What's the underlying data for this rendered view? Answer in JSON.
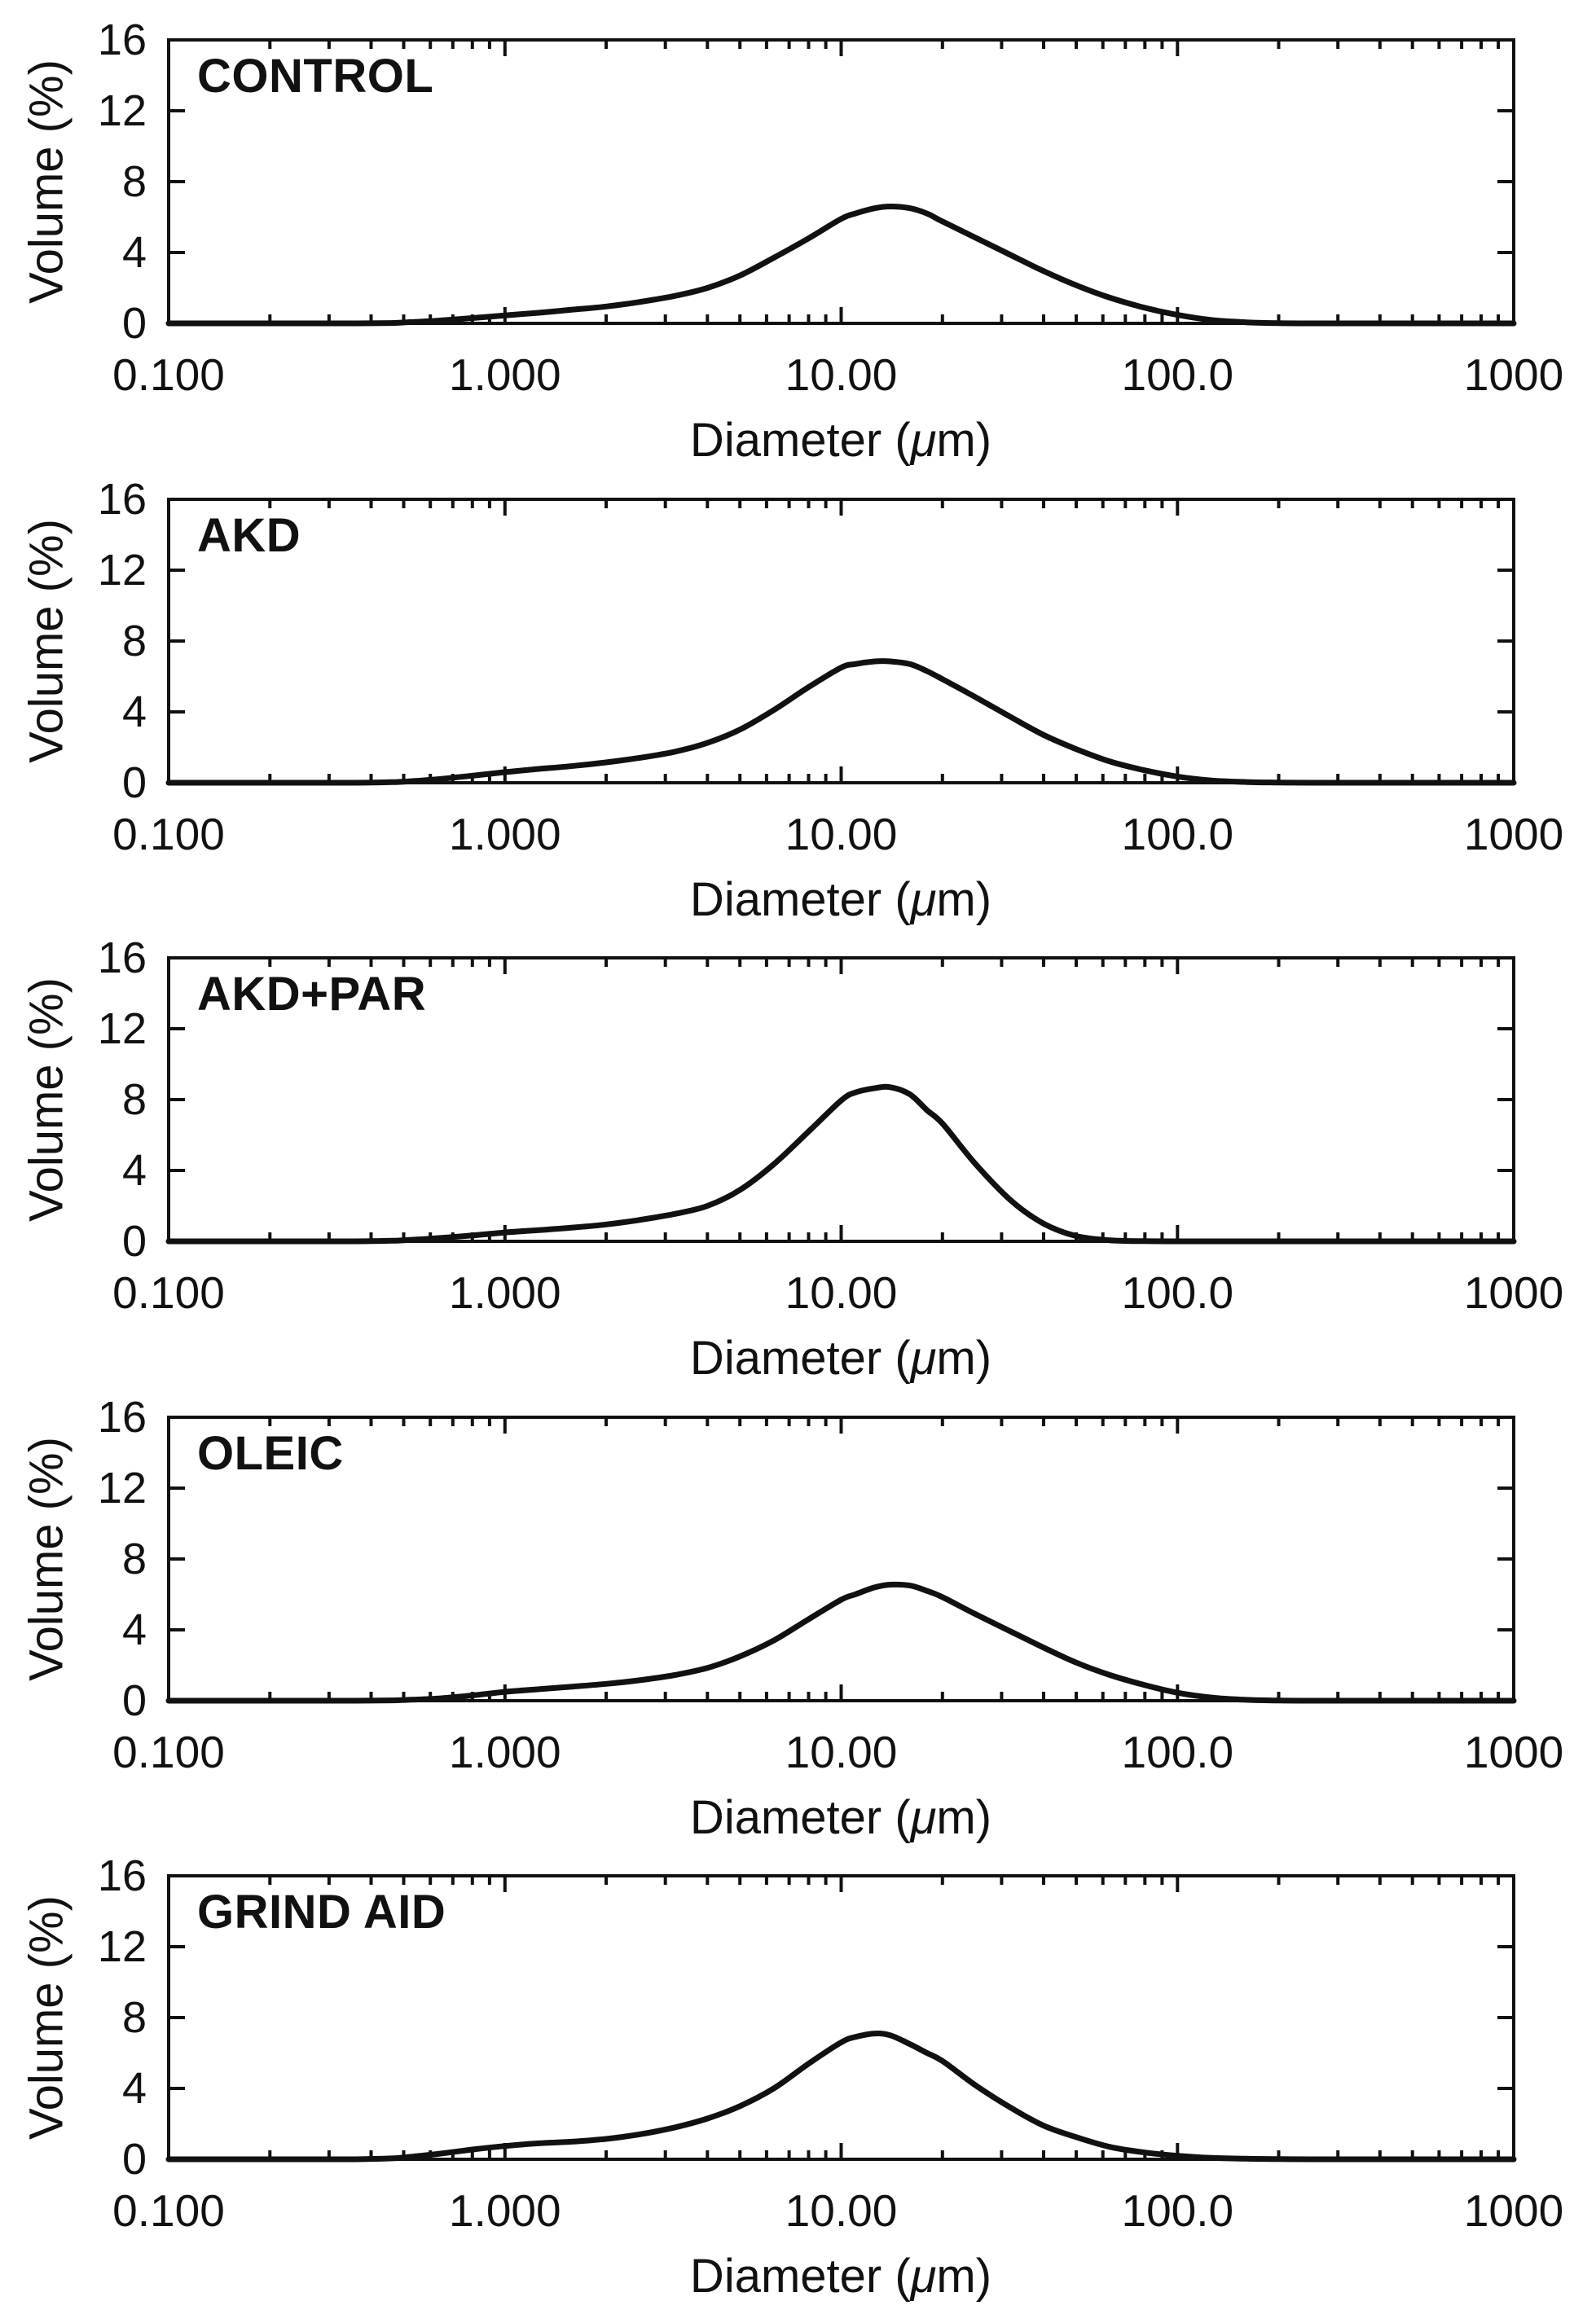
{
  "figure": {
    "background": "#ffffff",
    "ink": "#111111",
    "n_panels": 5
  },
  "axes": {
    "x": {
      "label": "Diameter (μm)",
      "label_prefix": "Diameter (",
      "label_mu": "μ",
      "label_suffix": "m)",
      "scale": "log",
      "min": 0.1,
      "max": 1000,
      "tick_values": [
        0.1,
        1,
        10,
        100,
        1000
      ],
      "tick_labels": [
        "0.100",
        "1.000",
        "10.00",
        "100.0",
        "1000"
      ],
      "minor_tick_decades": [
        -1,
        0,
        1,
        2
      ]
    },
    "y": {
      "label": "Volume (%)",
      "min": 0,
      "max": 16,
      "tick_values": [
        0,
        4,
        8,
        12,
        16
      ],
      "tick_labels": [
        "0",
        "4",
        "8",
        "12",
        "16"
      ]
    },
    "grid": "off",
    "frame": "box",
    "legend": "none"
  },
  "chart_data": [
    {
      "type": "line",
      "title": "CONTROL",
      "xlabel": "Diameter (μm)",
      "ylabel": "Volume (%)",
      "xscale": "log",
      "xlim": [
        0.1,
        1000
      ],
      "ylim": [
        0,
        16
      ],
      "x": [
        0.1,
        0.13,
        0.17,
        0.22,
        0.28,
        0.36,
        0.46,
        0.5,
        0.63,
        0.8,
        1,
        1.26,
        1.6,
        2,
        2.5,
        3.2,
        4,
        5,
        6.3,
        8,
        10,
        11,
        12.6,
        14,
        16,
        18,
        20,
        25,
        32,
        40,
        50,
        63,
        80,
        100,
        126,
        160,
        200,
        250,
        320,
        400,
        500,
        630,
        800,
        1000
      ],
      "y": [
        0,
        0,
        0,
        0,
        0,
        0,
        0.02,
        0.05,
        0.15,
        0.3,
        0.45,
        0.6,
        0.78,
        0.95,
        1.2,
        1.55,
        2.0,
        2.7,
        3.7,
        4.8,
        5.9,
        6.2,
        6.5,
        6.6,
        6.5,
        6.2,
        5.75,
        4.85,
        3.85,
        2.95,
        2.15,
        1.45,
        0.88,
        0.48,
        0.19,
        0.06,
        0.01,
        0,
        0,
        0,
        0,
        0,
        0,
        0
      ]
    },
    {
      "type": "line",
      "title": "AKD",
      "xlabel": "Diameter (μm)",
      "ylabel": "Volume (%)",
      "xscale": "log",
      "xlim": [
        0.1,
        1000
      ],
      "ylim": [
        0,
        16
      ],
      "x": [
        0.1,
        0.13,
        0.17,
        0.22,
        0.28,
        0.36,
        0.46,
        0.5,
        0.63,
        0.8,
        1,
        1.26,
        1.6,
        2,
        2.5,
        3.2,
        4,
        5,
        6.3,
        8,
        10,
        11,
        12.6,
        14,
        16,
        18,
        20,
        25,
        32,
        40,
        50,
        63,
        80,
        100,
        126,
        160,
        200,
        250,
        320,
        400,
        500,
        630,
        800,
        1000
      ],
      "y": [
        0,
        0,
        0,
        0,
        0,
        0,
        0.03,
        0.06,
        0.2,
        0.4,
        0.6,
        0.78,
        0.95,
        1.15,
        1.4,
        1.75,
        2.25,
        3.0,
        4.1,
        5.4,
        6.5,
        6.7,
        6.85,
        6.85,
        6.7,
        6.3,
        5.85,
        4.85,
        3.7,
        2.7,
        1.9,
        1.2,
        0.7,
        0.35,
        0.13,
        0.04,
        0.01,
        0,
        0,
        0,
        0,
        0,
        0,
        0
      ]
    },
    {
      "type": "line",
      "title": "AKD+PAR",
      "xlabel": "Diameter (μm)",
      "ylabel": "Volume (%)",
      "xscale": "log",
      "xlim": [
        0.1,
        1000
      ],
      "ylim": [
        0,
        16
      ],
      "x": [
        0.1,
        0.13,
        0.17,
        0.22,
        0.28,
        0.36,
        0.46,
        0.5,
        0.63,
        0.8,
        1,
        1.26,
        1.6,
        2,
        2.5,
        3.2,
        4,
        5,
        6.3,
        8,
        10,
        11,
        12.6,
        14,
        16,
        18,
        20,
        25,
        32,
        40,
        50,
        63,
        80,
        100,
        126,
        160,
        200,
        250,
        320,
        400,
        500,
        630,
        800,
        1000
      ],
      "y": [
        0,
        0,
        0,
        0,
        0,
        0,
        0.03,
        0.06,
        0.18,
        0.33,
        0.5,
        0.63,
        0.78,
        0.95,
        1.2,
        1.55,
        2.0,
        2.9,
        4.35,
        6.2,
        7.95,
        8.4,
        8.65,
        8.7,
        8.3,
        7.4,
        6.65,
        4.4,
        2.3,
        1.0,
        0.3,
        0.06,
        0.01,
        0,
        0,
        0,
        0,
        0,
        0,
        0,
        0,
        0,
        0,
        0
      ]
    },
    {
      "type": "line",
      "title": "OLEIC",
      "xlabel": "Diameter (μm)",
      "ylabel": "Volume (%)",
      "xscale": "log",
      "xlim": [
        0.1,
        1000
      ],
      "ylim": [
        0,
        16
      ],
      "x": [
        0.1,
        0.13,
        0.17,
        0.22,
        0.28,
        0.36,
        0.46,
        0.5,
        0.63,
        0.8,
        1,
        1.26,
        1.6,
        2,
        2.5,
        3.2,
        4,
        5,
        6.3,
        8,
        10,
        11,
        12.6,
        14,
        16,
        18,
        20,
        25,
        32,
        40,
        50,
        63,
        80,
        100,
        126,
        160,
        200,
        250,
        320,
        400,
        500,
        630,
        800,
        1000
      ],
      "y": [
        0,
        0,
        0,
        0,
        0,
        0,
        0.02,
        0.04,
        0.12,
        0.3,
        0.5,
        0.65,
        0.8,
        0.95,
        1.15,
        1.45,
        1.85,
        2.5,
        3.4,
        4.6,
        5.7,
        6.0,
        6.4,
        6.55,
        6.5,
        6.2,
        5.85,
        4.9,
        3.9,
        3.0,
        2.15,
        1.45,
        0.88,
        0.45,
        0.18,
        0.05,
        0.01,
        0,
        0,
        0,
        0,
        0,
        0,
        0
      ]
    },
    {
      "type": "line",
      "title": "GRIND AID",
      "xlabel": "Diameter (μm)",
      "ylabel": "Volume (%)",
      "xscale": "log",
      "xlim": [
        0.1,
        1000
      ],
      "ylim": [
        0,
        16
      ],
      "x": [
        0.1,
        0.13,
        0.17,
        0.22,
        0.28,
        0.36,
        0.46,
        0.5,
        0.63,
        0.8,
        1,
        1.26,
        1.6,
        2,
        2.5,
        3.2,
        4,
        5,
        6.3,
        8,
        10,
        11,
        12.6,
        14,
        16,
        18,
        20,
        25,
        32,
        40,
        50,
        63,
        80,
        100,
        126,
        160,
        200,
        250,
        320,
        400,
        500,
        630,
        800,
        1000
      ],
      "y": [
        0,
        0,
        0,
        0,
        0,
        0,
        0.05,
        0.1,
        0.3,
        0.55,
        0.75,
        0.9,
        1.0,
        1.15,
        1.4,
        1.8,
        2.3,
        3.0,
        4.0,
        5.4,
        6.6,
        6.9,
        7.1,
        7.0,
        6.5,
        6.0,
        5.55,
        4.2,
        2.9,
        1.9,
        1.25,
        0.7,
        0.38,
        0.2,
        0.08,
        0.03,
        0.01,
        0,
        0,
        0,
        0,
        0,
        0,
        0
      ]
    }
  ]
}
